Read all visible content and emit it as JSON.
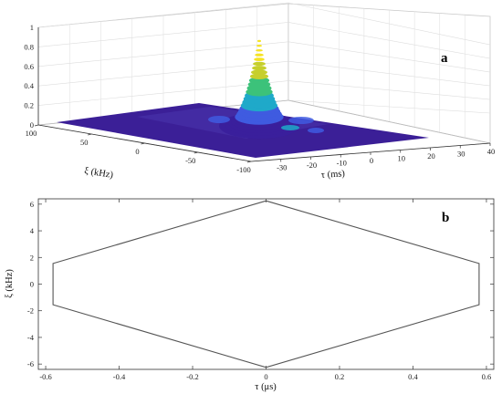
{
  "chart_data": [
    {
      "panel": "a",
      "type": "surface",
      "x_label": "τ (ms)",
      "y_label": "ξ (kHz)",
      "x_ticks": [
        "-30",
        "-20",
        "-10",
        "0",
        "10",
        "20",
        "30",
        "40"
      ],
      "y_ticks": [
        "100",
        "50",
        "0",
        "-50",
        "-100"
      ],
      "z_ticks": [
        "0",
        "0.2",
        "0.4",
        "0.6",
        "0.8",
        "1"
      ],
      "xlim": [
        -40,
        40
      ],
      "ylim": [
        -100,
        100
      ],
      "zlim": [
        0,
        1
      ],
      "peak": {
        "x": 0,
        "y": 0,
        "z": 0.86
      },
      "colormap": [
        "#3a1f9c",
        "#3f5be0",
        "#1fa9c9",
        "#3cc27a",
        "#c6cf2c",
        "#f6e322"
      ],
      "grid": true
    },
    {
      "panel": "b",
      "type": "line",
      "x_label": "τ (μs)",
      "y_label": "ξ (kHz)",
      "x_ticks": [
        "-0.6",
        "-0.4",
        "-0.2",
        "0",
        "0.2",
        "0.4",
        "0.6"
      ],
      "y_ticks": [
        "6",
        "4",
        "2",
        "0",
        "-2",
        "-4",
        "-6"
      ],
      "xlim": [
        -0.62,
        0.62
      ],
      "ylim": [
        -6.4,
        6.4
      ],
      "series": [
        {
          "x": [
            0,
            0.58,
            0.58,
            0,
            -0.58,
            -0.58,
            0
          ],
          "y": [
            6.25,
            1.55,
            -1.55,
            -6.25,
            -1.55,
            1.55,
            6.25
          ]
        }
      ],
      "line_color": "#555555",
      "grid": false
    }
  ]
}
